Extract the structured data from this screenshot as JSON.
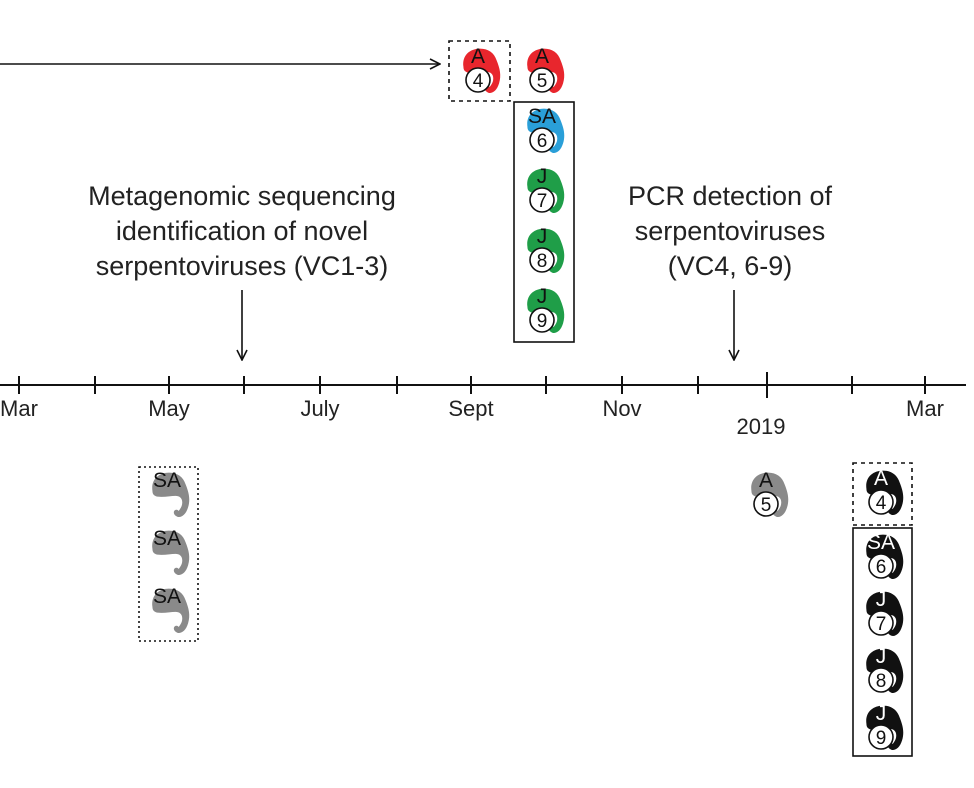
{
  "timeline": {
    "months": [
      "Mar",
      "May",
      "July",
      "Sept",
      "Nov",
      "Mar"
    ],
    "year_label": "2019"
  },
  "annotations": {
    "metagenomic": [
      "Metagenomic sequencing",
      "identification of novel",
      "serpentoviruses (VC1-3)"
    ],
    "pcr": [
      "PCR detection of",
      "serpentoviruses",
      "(VC4, 6-9)"
    ]
  },
  "colors": {
    "adult_red": "#e8262d",
    "subadult_blue": "#2a9fd8",
    "juvenile_green": "#1f9e48",
    "gray": "#8a8a8a",
    "black": "#111111"
  },
  "groups": {
    "upper_sept_single": [
      {
        "label": "A",
        "number": "4",
        "color": "adult_red"
      }
    ],
    "upper_sept_top": [
      {
        "label": "A",
        "number": "5",
        "color": "adult_red"
      }
    ],
    "upper_sept_stack": [
      {
        "label": "SA",
        "number": "6",
        "color": "subadult_blue"
      },
      {
        "label": "J",
        "number": "7",
        "color": "juvenile_green"
      },
      {
        "label": "J",
        "number": "8",
        "color": "juvenile_green"
      },
      {
        "label": "J",
        "number": "9",
        "color": "juvenile_green"
      }
    ],
    "lower_may": [
      {
        "label": "SA",
        "number": "",
        "color": "gray"
      },
      {
        "label": "SA",
        "number": "",
        "color": "gray"
      },
      {
        "label": "SA",
        "number": "",
        "color": "gray"
      }
    ],
    "lower_dec": [
      {
        "label": "A",
        "number": "5",
        "color": "gray"
      }
    ],
    "lower_mar_single": [
      {
        "label": "A",
        "number": "4",
        "color": "black"
      }
    ],
    "lower_mar_stack": [
      {
        "label": "SA",
        "number": "6",
        "color": "black"
      },
      {
        "label": "J",
        "number": "7",
        "color": "black"
      },
      {
        "label": "J",
        "number": "8",
        "color": "black"
      },
      {
        "label": "J",
        "number": "9",
        "color": "black"
      }
    ]
  }
}
